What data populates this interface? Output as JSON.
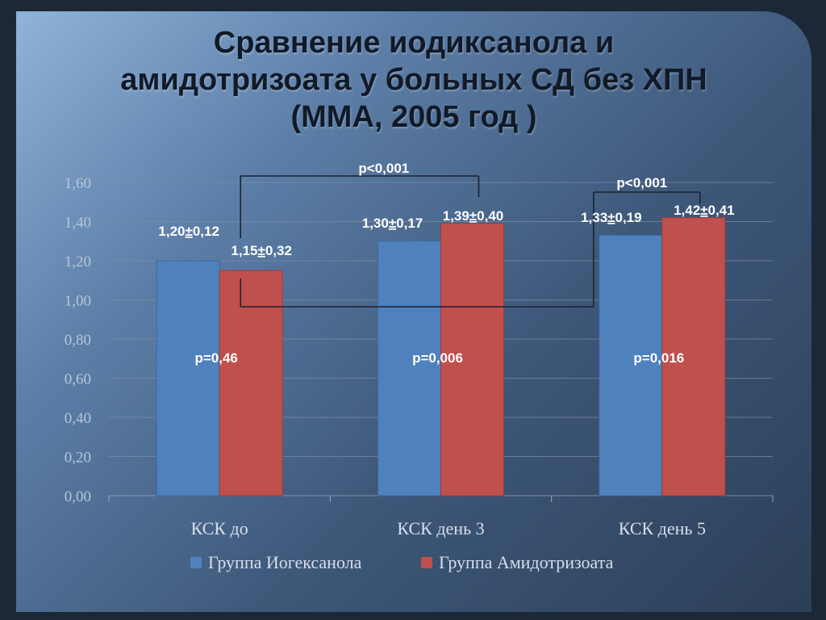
{
  "title_lines": [
    "Сравнение иодиксанола и",
    "амидотризоата у больных СД без ХПН",
    "(ММА, 2005 год )"
  ],
  "colors": {
    "series1": "#4f81bd",
    "series2": "#c0504d",
    "brackets": "#1a2230"
  },
  "chart_data": {
    "type": "bar",
    "categories": [
      "КСК до",
      "КСК день 3",
      "КСК день 5"
    ],
    "series": [
      {
        "name": "Группа Иогексанола",
        "values": [
          1.2,
          1.3,
          1.33
        ],
        "labels": [
          "1,20±0,12",
          "1,30±0,17",
          "1,33±0,19"
        ]
      },
      {
        "name": "Группа Амидотризоата",
        "values": [
          1.15,
          1.39,
          1.42
        ],
        "labels": [
          "1,15±0,32",
          "1,39±0,40",
          "1,42±0,41"
        ]
      }
    ],
    "ylim": [
      0,
      1.6
    ],
    "yticks": [
      "0,00",
      "0,20",
      "0,40",
      "0,60",
      "0,80",
      "1,00",
      "1,20",
      "1,40",
      "1,60"
    ],
    "ytick_values": [
      0,
      0.2,
      0.4,
      0.6,
      0.8,
      1.0,
      1.2,
      1.4,
      1.6
    ],
    "grid": true,
    "legend": "bottom",
    "annotations": {
      "p_values": [
        "p=0,46",
        "p=0,006",
        "p=0,016"
      ],
      "brackets": [
        {
          "label": "p<0,001",
          "from": "КСК до",
          "to": "КСК день 3"
        },
        {
          "label": "p<0,001",
          "from": "КСК до",
          "to": "КСК день 5"
        }
      ]
    }
  }
}
